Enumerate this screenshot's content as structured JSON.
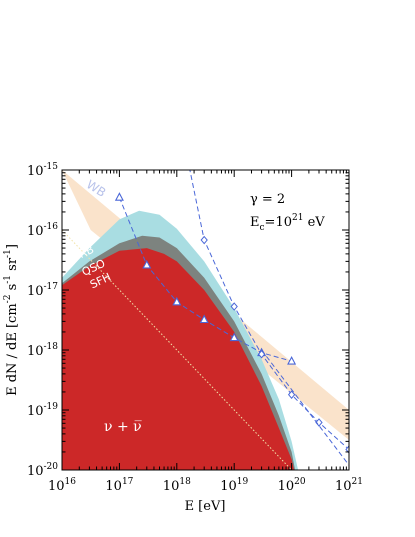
{
  "chart_data": {
    "type": "area",
    "xlabel": "E [eV]",
    "ylabel": {
      "prefix": "E dN / dE  [cm",
      "sup1": "-2",
      "mid1": " s",
      "sup2": "-1",
      "mid2": " sr",
      "sup3": "-1",
      "suffix": "]"
    },
    "x_scale": "log",
    "y_scale": "log",
    "xlim": [
      1e+16,
      1e+21
    ],
    "ylim": [
      1e-20,
      1e-15
    ],
    "x_ticks": [
      {
        "base": "10",
        "exp": "16",
        "value": 1e+16
      },
      {
        "base": "10",
        "exp": "17",
        "value": 1e+17
      },
      {
        "base": "10",
        "exp": "18",
        "value": 1e+18
      },
      {
        "base": "10",
        "exp": "19",
        "value": 1e+19
      },
      {
        "base": "10",
        "exp": "20",
        "value": 1e+20
      },
      {
        "base": "10",
        "exp": "21",
        "value": 1e+21
      }
    ],
    "y_ticks": [
      {
        "base": "10",
        "exp": "-15",
        "value": 1e-15
      },
      {
        "base": "10",
        "exp": "-16",
        "value": 1e-16
      },
      {
        "base": "10",
        "exp": "-17",
        "value": 1e-17
      },
      {
        "base": "10",
        "exp": "-18",
        "value": 1e-18
      },
      {
        "base": "10",
        "exp": "-19",
        "value": 1e-19
      },
      {
        "base": "10",
        "exp": "-20",
        "value": 1e-20
      }
    ],
    "annotations": {
      "gamma": "γ = 2",
      "ec_prefix": "E",
      "ec_sub": "c",
      "ec_mid": "=10",
      "ec_exp": "21",
      "ec_unit": " eV",
      "neutrino": "ν + ν̅"
    },
    "bands": [
      {
        "name": "GRB",
        "color": "#a9dde2",
        "points": [
          [
            1e+16,
            1.6e-17
          ],
          [
            3e+16,
            5e-17
          ],
          [
            1e+17,
            1.5e-16
          ],
          [
            2.2e+17,
            2.1e-16
          ],
          [
            5e+17,
            1.8e-16
          ],
          [
            1e+18,
            1.05e-16
          ],
          [
            3e+18,
            3e-17
          ],
          [
            1e+19,
            5e-18
          ],
          [
            3e+19,
            7e-19
          ],
          [
            6e+19,
            1.5e-19
          ],
          [
            1e+20,
            3e-20
          ],
          [
            1.3e+20,
            1e-20
          ]
        ]
      },
      {
        "name": "QSO",
        "color": "#7d837f",
        "points": [
          [
            1e+16,
            1.3e-17
          ],
          [
            3e+16,
            3e-17
          ],
          [
            1e+17,
            6e-17
          ],
          [
            2.5e+17,
            8e-17
          ],
          [
            5e+17,
            7.5e-17
          ],
          [
            1e+18,
            5e-17
          ],
          [
            3e+18,
            1.6e-17
          ],
          [
            1e+19,
            3e-18
          ],
          [
            3e+19,
            4e-19
          ],
          [
            6e+19,
            8e-20
          ],
          [
            1e+20,
            2e-20
          ],
          [
            1.15e+20,
            1e-20
          ]
        ]
      },
      {
        "name": "SFH",
        "color": "#cc2828",
        "points": [
          [
            1e+16,
            1.2e-17
          ],
          [
            3e+16,
            2.5e-17
          ],
          [
            1e+17,
            4.5e-17
          ],
          [
            3e+17,
            5e-17
          ],
          [
            6e+17,
            4e-17
          ],
          [
            1e+18,
            3e-17
          ],
          [
            3e+18,
            1e-17
          ],
          [
            1e+19,
            2e-18
          ],
          [
            3e+19,
            2.5e-19
          ],
          [
            6e+19,
            5e-20
          ],
          [
            1e+20,
            1.5e-20
          ],
          [
            1.1e+20,
            1e-20
          ]
        ]
      }
    ],
    "wb_band": {
      "name": "WB",
      "color": "#fae3cb",
      "upper": [
        [
          1e+16,
          1e-15
        ],
        [
          1e+21,
          1e-19
        ]
      ],
      "lower": [
        [
          3.16e+16,
          1e-16
        ],
        [
          1e+21,
          3.16e-20
        ]
      ]
    },
    "dotted_line": {
      "color": "#f2e3a8",
      "points": [
        [
          1e+16,
          1e-16
        ],
        [
          1e+20,
          1e-20
        ]
      ]
    },
    "series": [
      {
        "marker": "triangle",
        "color": "#4a67d8",
        "points": [
          [
            1e+17,
            3.5e-16
          ],
          [
            3e+17,
            2.6e-17
          ],
          [
            1e+18,
            6.3e-18
          ],
          [
            3e+18,
            3.2e-18
          ],
          [
            1e+19,
            1.6e-18
          ],
          [
            3e+19,
            9e-19
          ],
          [
            1e+20,
            6.5e-19
          ]
        ]
      },
      {
        "marker": "diamond",
        "color": "#4a67d8",
        "points": [
          [
            1.2e+18,
            5e-15
          ],
          [
            3e+18,
            6.8e-17
          ],
          [
            1e+19,
            5.3e-18
          ],
          [
            3e+19,
            8.5e-19
          ],
          [
            1e+20,
            1.8e-19
          ],
          [
            3e+20,
            6.2e-20
          ],
          [
            1e+21,
            2.2e-20
          ]
        ]
      },
      {
        "marker": "none",
        "color": "#4a67d8",
        "points": [
          [
            3e+19,
            1e-18
          ],
          [
            1e+21,
            1.2e-20
          ]
        ]
      }
    ]
  }
}
